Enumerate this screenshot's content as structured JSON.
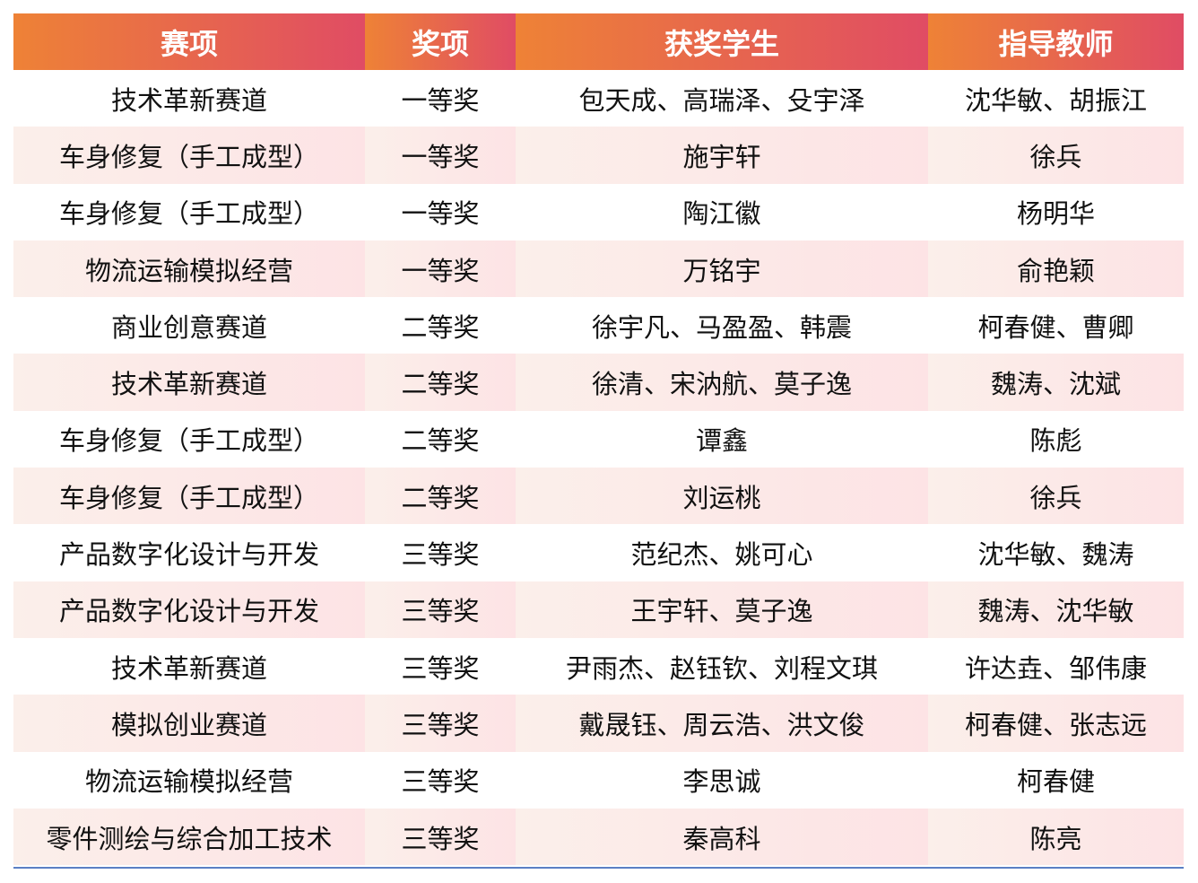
{
  "colors": {
    "header_start": "#ee8236",
    "header_end": "#e04c64",
    "stripe": "#fde3e5",
    "bottom_rule": "#5b7fc4"
  },
  "headers": [
    "赛项",
    "奖项",
    "获奖学生",
    "指导教师"
  ],
  "rows": [
    [
      "技术革新赛道",
      "一等奖",
      "包天成、高瑞泽、殳宇泽",
      "沈华敏、胡振江"
    ],
    [
      "车身修复（手工成型）",
      "一等奖",
      "施宇轩",
      "徐兵"
    ],
    [
      "车身修复（手工成型）",
      "一等奖",
      "陶江徽",
      "杨明华"
    ],
    [
      "物流运输模拟经营",
      "一等奖",
      "万铭宇",
      "俞艳颖"
    ],
    [
      "商业创意赛道",
      "二等奖",
      "徐宇凡、马盈盈、韩震",
      "柯春健、曹卿"
    ],
    [
      "技术革新赛道",
      "二等奖",
      "徐清、宋汭航、莫子逸",
      "魏涛、沈斌"
    ],
    [
      "车身修复（手工成型）",
      "二等奖",
      "谭鑫",
      "陈彪"
    ],
    [
      "车身修复（手工成型）",
      "二等奖",
      "刘运桃",
      "徐兵"
    ],
    [
      "产品数字化设计与开发",
      "三等奖",
      "范纪杰、姚可心",
      "沈华敏、魏涛"
    ],
    [
      "产品数字化设计与开发",
      "三等奖",
      "王宇轩、莫子逸",
      "魏涛、沈华敏"
    ],
    [
      "技术革新赛道",
      "三等奖",
      "尹雨杰、赵钰钦、刘程文琪",
      "许达垚、邹伟康"
    ],
    [
      "模拟创业赛道",
      "三等奖",
      "戴晟钰、周云浩、洪文俊",
      "柯春健、张志远"
    ],
    [
      "物流运输模拟经营",
      "三等奖",
      "李思诚",
      "柯春健"
    ],
    [
      "零件测绘与综合加工技术",
      "三等奖",
      "秦高科",
      "陈亮"
    ]
  ]
}
